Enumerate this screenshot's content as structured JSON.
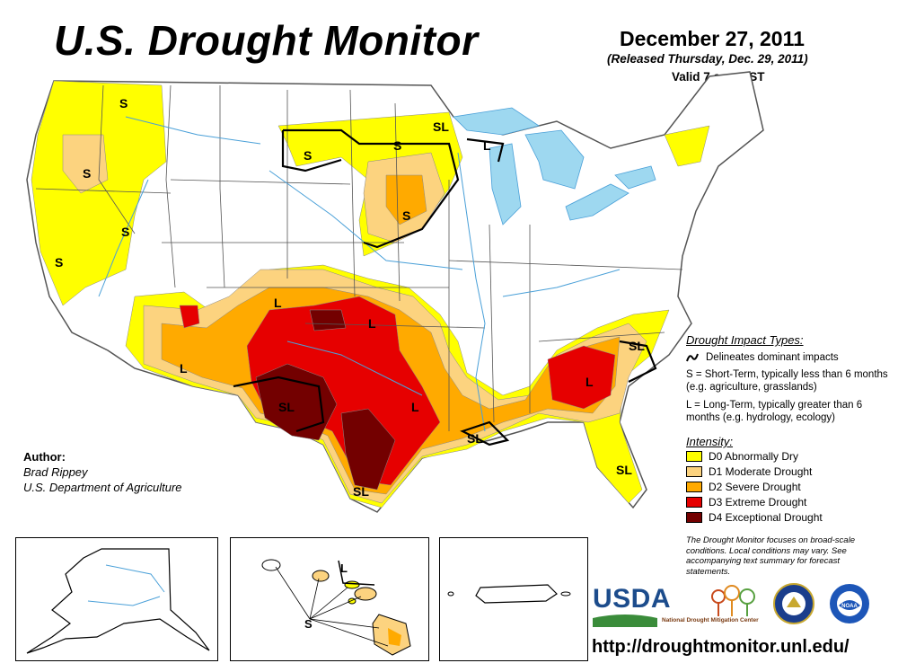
{
  "header": {
    "title": "U.S. Drought Monitor",
    "date": "December 27, 2011",
    "released": "(Released Thursday, Dec. 29, 2011)",
    "valid": "Valid 7 a.m. EST"
  },
  "author": {
    "label": "Author:",
    "name": "Brad Rippey",
    "org": "U.S. Department of Agriculture"
  },
  "legend": {
    "impact_title": "Drought Impact Types:",
    "dominant_label": "Delineates dominant impacts",
    "short_term": "S = Short-Term, typically less than 6 months (e.g. agriculture, grasslands)",
    "long_term": "L = Long-Term, typically greater than 6 months (e.g. hydrology, ecology)",
    "intensity_title": "Intensity:",
    "intensity": [
      {
        "label": "D0 Abnormally Dry",
        "color": "#ffff00"
      },
      {
        "label": "D1 Moderate Drought",
        "color": "#fcd37f"
      },
      {
        "label": "D2 Severe Drought",
        "color": "#ffaa00"
      },
      {
        "label": "D3 Extreme Drought",
        "color": "#e60000"
      },
      {
        "label": "D4 Exceptional Drought",
        "color": "#730000"
      }
    ],
    "disclaimer": "The Drought Monitor focuses on broad-scale conditions. Local conditions may vary. See accompanying text summary for forecast statements."
  },
  "map_labels": {
    "s": "S",
    "l": "L",
    "sl": "SL"
  },
  "logos": {
    "usda": "USDA",
    "ndmc": "National Drought Mitigation Center",
    "commerce": "commerce-seal",
    "noaa": "NOAA"
  },
  "url": "http://droughtmonitor.unl.edu/",
  "colors": {
    "water": "#9ed8f0",
    "river": "#4aa0d8",
    "border": "#555555"
  }
}
